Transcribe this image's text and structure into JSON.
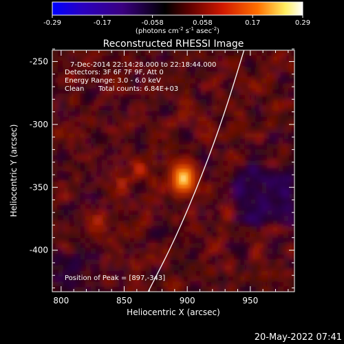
{
  "chart_data": {
    "type": "heatmap",
    "title": "Reconstructed RHESSI Image",
    "xlabel": "Heliocentric X (arcsec)",
    "ylabel": "Heliocentric Y (arcsec)",
    "xlim": [
      793,
      985
    ],
    "ylim": [
      -433,
      -241
    ],
    "x_ticks": [
      800,
      850,
      900,
      950
    ],
    "y_ticks": [
      -250,
      -300,
      -350,
      -400
    ],
    "colorbar": {
      "range": [
        -0.29,
        0.29
      ],
      "ticks": [
        "-0.29",
        "-0.17",
        "-0.058",
        "0.058",
        "0.17",
        "0.29"
      ],
      "unit_base": "(photons cm",
      "unit_sup1": "-2",
      "unit_mid1": " s",
      "unit_sup2": "-1",
      "unit_mid2": " asec",
      "unit_sup3": "-2",
      "unit_end": ")",
      "colormap": [
        "#0000ff",
        "#2a00c0",
        "#3a0080",
        "#000000",
        "#800000",
        "#e02000",
        "#ff8000",
        "#ffff80",
        "#ffffff"
      ]
    },
    "annotations": {
      "time_range": "7-Dec-2014 22:14:28.000 to 22:18:44.000",
      "detectors": "Detectors: 3F 6F 7F 9F, Att 0",
      "energy_range": "Energy Range: 3.0 - 6.0 keV",
      "method": "Clean",
      "total_counts": "Total counts: 6.84E+03",
      "peak_position": "Position of Peak = [897,-343]"
    },
    "peak": {
      "x": 897,
      "y": -343,
      "value": 0.29
    },
    "secondary_sources": [
      {
        "x": 829,
        "y": -376,
        "value": 0.12
      },
      {
        "x": 848,
        "y": -347,
        "value": 0.08
      },
      {
        "x": 862,
        "y": -335,
        "value": 0.09
      }
    ],
    "limb_curve": [
      {
        "x": 869,
        "y": -433
      },
      {
        "x": 890,
        "y": -392
      },
      {
        "x": 912,
        "y": -340
      },
      {
        "x": 930,
        "y": -290
      },
      {
        "x": 945,
        "y": -241
      }
    ]
  },
  "footer": {
    "timestamp": "20-May-2022 07:41"
  }
}
